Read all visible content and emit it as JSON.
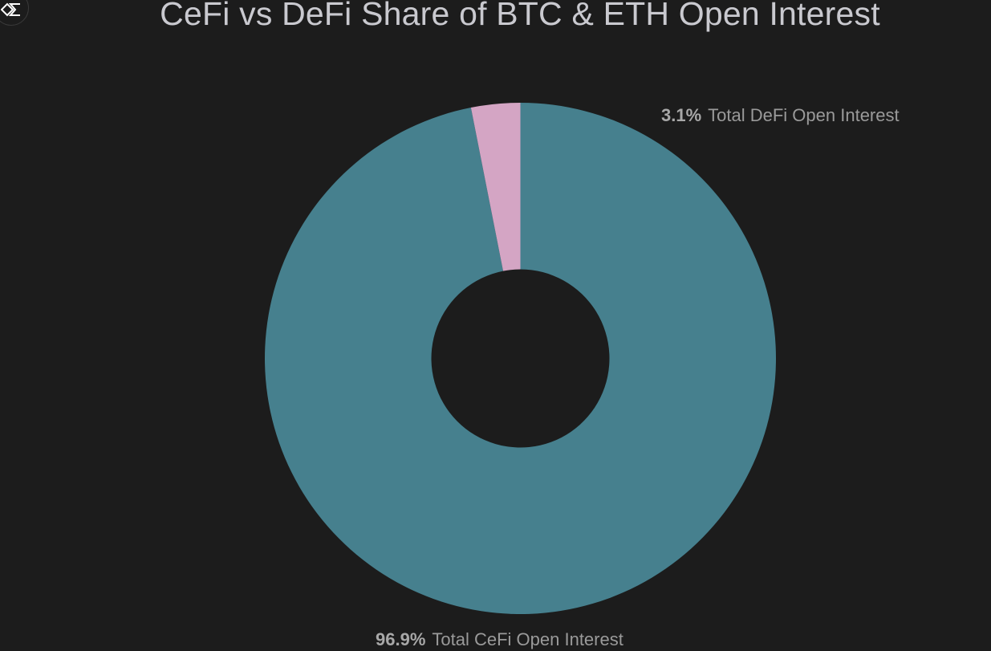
{
  "header": {
    "title": "CeFi vs DeFi Share of BTC & ETH Open Interest",
    "logo_icon": "sigma-diamond-logo-icon"
  },
  "chart_data": {
    "type": "pie",
    "title": "CeFi vs DeFi Share of BTC & ETH Open Interest",
    "donut": true,
    "categories": [
      "Total CeFi Open Interest",
      "Total DeFi Open Interest"
    ],
    "values": [
      96.9,
      3.1
    ],
    "unit": "%",
    "colors": [
      "#46808e",
      "#d4a5c4"
    ],
    "labels": [
      {
        "pct": "96.9%",
        "name": "Total CeFi Open Interest",
        "position": "bottom"
      },
      {
        "pct": "3.1%",
        "name": "Total DeFi Open Interest",
        "position": "top-right"
      }
    ],
    "legend": "none (labels on chart)"
  },
  "labels": {
    "defi": {
      "pct": "3.1%",
      "name": "Total DeFi Open Interest"
    },
    "cefi": {
      "pct": "96.9%",
      "name": "Total CeFi Open Interest"
    }
  },
  "colors": {
    "background": "#1c1c1c",
    "cefi": "#46808e",
    "defi": "#d4a5c4",
    "title": "#c9c9cf",
    "label": "#9a9a9a"
  }
}
